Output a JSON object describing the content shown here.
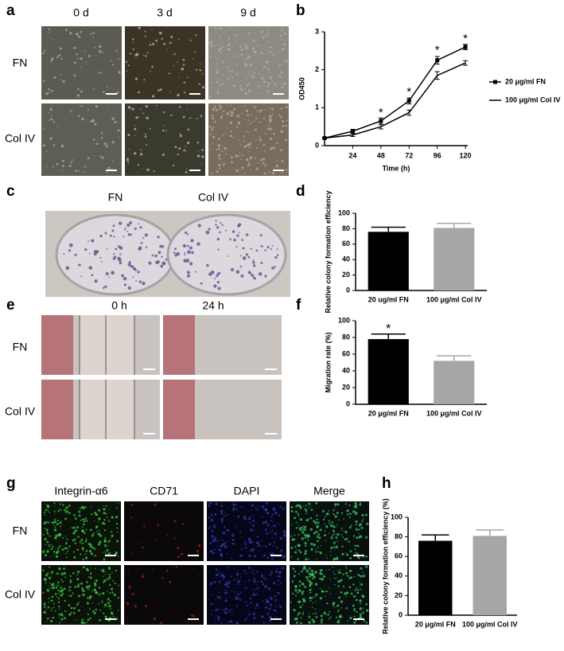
{
  "figure": {
    "a": {
      "letter": "a",
      "columns": [
        "0 d",
        "3 d",
        "9 d"
      ],
      "rows": [
        "FN",
        "Col IV"
      ]
    },
    "c": {
      "letter": "c",
      "labels": [
        "FN",
        "Col IV"
      ]
    },
    "e": {
      "letter": "e",
      "columns": [
        "0 h",
        "24 h"
      ],
      "rows": [
        "FN",
        "Col IV"
      ]
    },
    "g": {
      "letter": "g",
      "columns": [
        "Integrin-α6",
        "CD71",
        "DAPI",
        "Merge"
      ],
      "rows": [
        "FN",
        "Col IV"
      ]
    }
  },
  "chart_data": [
    {
      "type": "line",
      "panel": "b",
      "x": [
        0,
        24,
        48,
        72,
        96,
        120
      ],
      "xlim": [
        0,
        122
      ],
      "xticks": [
        24,
        48,
        72,
        96,
        120
      ],
      "ylim": [
        0,
        3
      ],
      "yticks": [
        0,
        1,
        2,
        3
      ],
      "xlabel": "Time (h)",
      "ylabel": "OD450",
      "legend": "right",
      "series": [
        {
          "name": "20 μg/ml FN",
          "color": "#000000",
          "marker": "square",
          "values": [
            0.2,
            0.38,
            0.65,
            1.18,
            2.25,
            2.6
          ],
          "errors": [
            0.02,
            0.05,
            0.08,
            0.08,
            0.1,
            0.07
          ]
        },
        {
          "name": "100 μg/ml Col IV",
          "color": "#000000",
          "marker": "none",
          "values": [
            0.2,
            0.28,
            0.5,
            0.87,
            1.85,
            2.18
          ],
          "errors": [
            0.02,
            0.04,
            0.06,
            0.07,
            0.1,
            0.06
          ]
        }
      ],
      "annotations": [
        {
          "x": 48,
          "y": 0.9,
          "text": "*"
        },
        {
          "x": 72,
          "y": 1.45,
          "text": "*"
        },
        {
          "x": 96,
          "y": 2.55,
          "text": "*"
        },
        {
          "x": 120,
          "y": 2.85,
          "text": "*"
        }
      ]
    },
    {
      "type": "bar",
      "panel": "d",
      "categories": [
        "20 ug/ml FN",
        "100 μg/ml Col IV"
      ],
      "values": [
        76,
        81
      ],
      "errors": [
        6,
        6
      ],
      "colors": [
        "#000000",
        "#a6a6a6"
      ],
      "ylim": [
        0,
        100
      ],
      "yticks": [
        0,
        20,
        40,
        60,
        80,
        100
      ],
      "ylabel": "Relative colony formation efficiency"
    },
    {
      "type": "bar",
      "panel": "f",
      "categories": [
        "20 μg/ml FN",
        "100 μg/ml Col IV"
      ],
      "values": [
        78,
        52
      ],
      "errors": [
        6,
        6
      ],
      "colors": [
        "#000000",
        "#a6a6a6"
      ],
      "ylim": [
        0,
        100
      ],
      "yticks": [
        0,
        20,
        40,
        60,
        80,
        100
      ],
      "ylabel": "Migration rate (%)",
      "annotations": [
        {
          "category": 0,
          "text": "*"
        }
      ]
    },
    {
      "type": "bar",
      "panel": "h",
      "categories": [
        "20 μg/ml FN",
        "100 μg/ml Col IV"
      ],
      "values": [
        76,
        81
      ],
      "errors": [
        6,
        6
      ],
      "colors": [
        "#000000",
        "#a6a6a6"
      ],
      "ylim": [
        0,
        100
      ],
      "yticks": [
        0,
        20,
        40,
        60,
        80,
        100
      ],
      "ylabel": "Relative colony formation efficiency (%)"
    }
  ]
}
